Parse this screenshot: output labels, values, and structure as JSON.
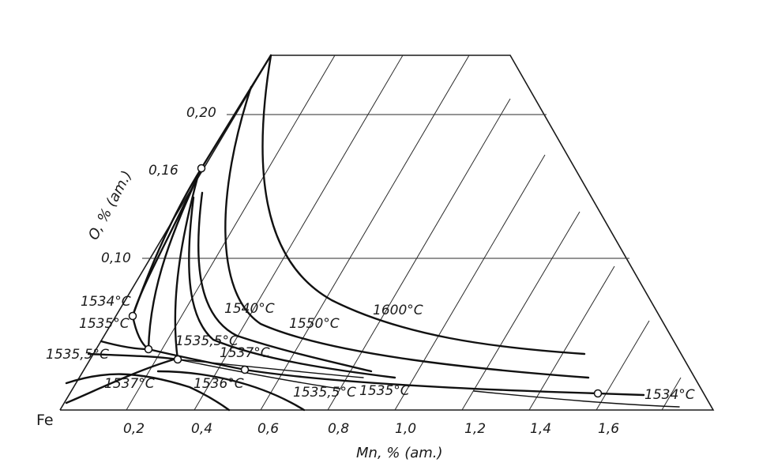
{
  "diagram": {
    "corner_label": "Fe",
    "x_axis": {
      "label": "Mn, % (am.)",
      "ticks": [
        "0,2",
        "0,4",
        "0,6",
        "0,8",
        "1,0",
        "1,2",
        "1,4",
        "1,6"
      ]
    },
    "y_axis": {
      "label": "O, % (am.)",
      "ticks": [
        "0,10",
        "0,16",
        "0,20"
      ]
    },
    "isotherms": [
      {
        "id": "t1534a",
        "label": "1534°C"
      },
      {
        "id": "t1535a",
        "label": "1535°C"
      },
      {
        "id": "t15355a",
        "label": "1535,5°C"
      },
      {
        "id": "t1537a",
        "label": "1537°C"
      },
      {
        "id": "t1536",
        "label": "1536°C"
      },
      {
        "id": "t15355b",
        "label": "1535,5°C"
      },
      {
        "id": "t1537b",
        "label": "1537°C"
      },
      {
        "id": "t1540",
        "label": "1540°C"
      },
      {
        "id": "t1550",
        "label": "1550°C"
      },
      {
        "id": "t1600",
        "label": "1600°C"
      },
      {
        "id": "t15355c",
        "label": "1535,5°C"
      },
      {
        "id": "t1535b",
        "label": "1535°C"
      },
      {
        "id": "t1534b",
        "label": "1534°C"
      }
    ]
  }
}
